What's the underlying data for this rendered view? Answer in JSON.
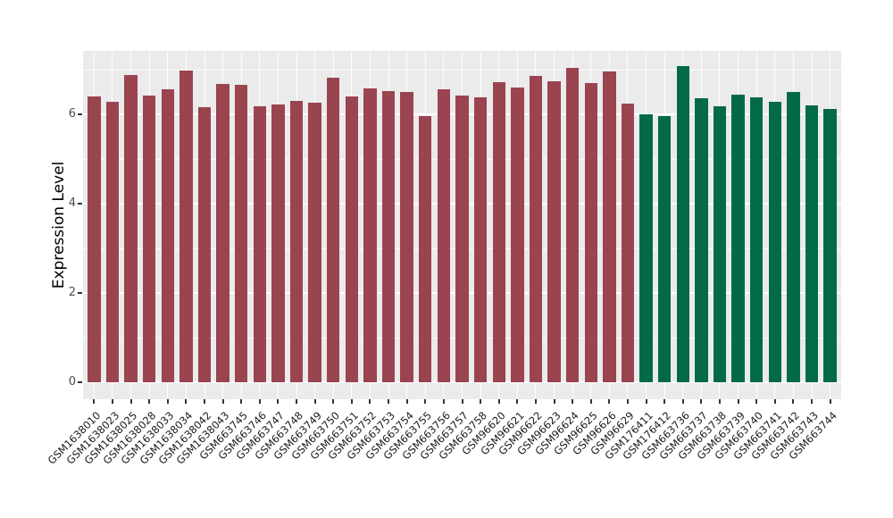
{
  "chart_data": {
    "type": "bar",
    "title": "",
    "xlabel": "",
    "ylabel": "Expression Level",
    "ylim": [
      -0.37,
      7.42
    ],
    "yticks": [
      0,
      2,
      4,
      6
    ],
    "minor_yticks": [
      1,
      3,
      5,
      7
    ],
    "grid": "on",
    "legend_position": "none",
    "panel_background": "#EBEBEB",
    "gridline_color": "#FFFFFF",
    "tick_color": "#333333",
    "axis_text_color": "#4D4D4D",
    "group_colors": {
      "group1": "#9A4450",
      "group2": "#026A49"
    },
    "categories": [
      "GSM1638010",
      "GSM1638023",
      "GSM1638025",
      "GSM1638028",
      "GSM1638033",
      "GSM1638034",
      "GSM1638042",
      "GSM1638043",
      "GSM663745",
      "GSM663746",
      "GSM663747",
      "GSM663748",
      "GSM663749",
      "GSM663750",
      "GSM663751",
      "GSM663752",
      "GSM663753",
      "GSM663754",
      "GSM663755",
      "GSM663756",
      "GSM663757",
      "GSM663758",
      "GSM96620",
      "GSM96621",
      "GSM96622",
      "GSM96623",
      "GSM96624",
      "GSM96625",
      "GSM96626",
      "GSM96629",
      "GSM176411",
      "GSM176412",
      "GSM663736",
      "GSM663737",
      "GSM663738",
      "GSM663739",
      "GSM663740",
      "GSM663741",
      "GSM663742",
      "GSM663743",
      "GSM663744"
    ],
    "values": [
      6.41,
      6.29,
      6.89,
      6.43,
      6.56,
      6.98,
      6.16,
      6.68,
      6.66,
      6.18,
      6.23,
      6.31,
      6.26,
      6.82,
      6.41,
      6.58,
      6.53,
      6.51,
      5.97,
      6.57,
      6.43,
      6.39,
      6.73,
      6.61,
      6.86,
      6.74,
      7.05,
      6.71,
      6.97,
      6.25,
      6.01,
      5.96,
      7.08,
      6.36,
      6.18,
      6.44,
      6.39,
      6.28,
      6.5,
      6.2,
      6.13
    ],
    "groups": [
      "group1",
      "group1",
      "group1",
      "group1",
      "group1",
      "group1",
      "group1",
      "group1",
      "group1",
      "group1",
      "group1",
      "group1",
      "group1",
      "group1",
      "group1",
      "group1",
      "group1",
      "group1",
      "group1",
      "group1",
      "group1",
      "group1",
      "group1",
      "group1",
      "group1",
      "group1",
      "group1",
      "group1",
      "group1",
      "group1",
      "group2",
      "group2",
      "group2",
      "group2",
      "group2",
      "group2",
      "group2",
      "group2",
      "group2",
      "group2",
      "group2"
    ]
  }
}
